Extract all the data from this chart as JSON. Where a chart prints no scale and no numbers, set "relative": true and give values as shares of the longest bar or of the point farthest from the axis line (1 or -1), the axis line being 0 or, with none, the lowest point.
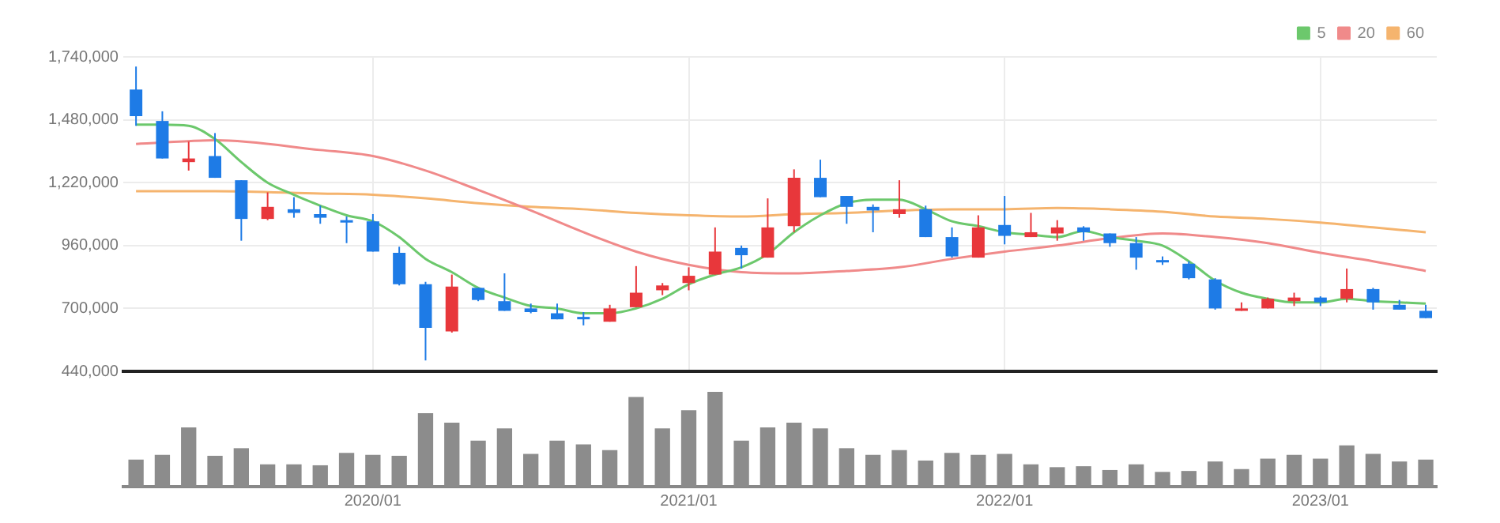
{
  "chart_data": [
    {
      "type": "candlestick",
      "x": [
        "2019-04",
        "2019-05",
        "2019-06",
        "2019-07",
        "2019-08",
        "2019-09",
        "2019-10",
        "2019-11",
        "2019-12",
        "2020-01",
        "2020-02",
        "2020-03",
        "2020-04",
        "2020-05",
        "2020-06",
        "2020-07",
        "2020-08",
        "2020-09",
        "2020-10",
        "2020-11",
        "2020-12",
        "2021-01",
        "2021-02",
        "2021-03",
        "2021-04",
        "2021-05",
        "2021-06",
        "2021-07",
        "2021-08",
        "2021-09",
        "2021-10",
        "2021-11",
        "2021-12",
        "2022-01",
        "2022-02",
        "2022-03",
        "2022-04",
        "2022-05",
        "2022-06",
        "2022-07",
        "2022-08",
        "2022-09",
        "2022-10",
        "2022-11",
        "2022-12",
        "2023-01",
        "2023-02",
        "2023-03",
        "2023-04",
        "2023-05"
      ],
      "ohlc": [
        [
          1605000,
          1700000,
          1455000,
          1495000
        ],
        [
          1475000,
          1515000,
          1320000,
          1320000
        ],
        [
          1305000,
          1390000,
          1270000,
          1320000
        ],
        [
          1330000,
          1425000,
          1240000,
          1240000
        ],
        [
          1230000,
          1230000,
          980000,
          1070000
        ],
        [
          1070000,
          1180000,
          1065000,
          1120000
        ],
        [
          1110000,
          1160000,
          1075000,
          1095000
        ],
        [
          1090000,
          1125000,
          1050000,
          1075000
        ],
        [
          1065000,
          1080000,
          970000,
          1055000
        ],
        [
          1060000,
          1090000,
          935000,
          935000
        ],
        [
          930000,
          955000,
          795000,
          800000
        ],
        [
          800000,
          810000,
          485000,
          620000
        ],
        [
          605000,
          840000,
          600000,
          790000
        ],
        [
          785000,
          785000,
          730000,
          735000
        ],
        [
          730000,
          845000,
          690000,
          690000
        ],
        [
          700000,
          720000,
          680000,
          685000
        ],
        [
          680000,
          720000,
          655000,
          655000
        ],
        [
          665000,
          685000,
          630000,
          655000
        ],
        [
          645000,
          715000,
          645000,
          700000
        ],
        [
          705000,
          875000,
          705000,
          765000
        ],
        [
          775000,
          805000,
          755000,
          795000
        ],
        [
          805000,
          870000,
          775000,
          835000
        ],
        [
          840000,
          1035000,
          840000,
          935000
        ],
        [
          950000,
          960000,
          865000,
          920000
        ],
        [
          910000,
          1155000,
          910000,
          1035000
        ],
        [
          1040000,
          1275000,
          1015000,
          1240000
        ],
        [
          1240000,
          1315000,
          1160000,
          1160000
        ],
        [
          1165000,
          1165000,
          1050000,
          1120000
        ],
        [
          1120000,
          1130000,
          1015000,
          1105000
        ],
        [
          1090000,
          1230000,
          1075000,
          1110000
        ],
        [
          1110000,
          1125000,
          995000,
          995000
        ],
        [
          995000,
          1035000,
          910000,
          915000
        ],
        [
          910000,
          1085000,
          910000,
          1035000
        ],
        [
          1045000,
          1165000,
          965000,
          1000000
        ],
        [
          995000,
          1095000,
          995000,
          1015000
        ],
        [
          1010000,
          1065000,
          980000,
          1035000
        ],
        [
          1035000,
          1040000,
          980000,
          1015000
        ],
        [
          1010000,
          1010000,
          955000,
          970000
        ],
        [
          970000,
          995000,
          860000,
          910000
        ],
        [
          900000,
          915000,
          880000,
          895000
        ],
        [
          885000,
          895000,
          820000,
          825000
        ],
        [
          820000,
          825000,
          695000,
          700000
        ],
        [
          690000,
          725000,
          690000,
          700000
        ],
        [
          700000,
          745000,
          700000,
          740000
        ],
        [
          730000,
          765000,
          710000,
          745000
        ],
        [
          745000,
          750000,
          710000,
          725000
        ],
        [
          740000,
          865000,
          725000,
          780000
        ],
        [
          780000,
          785000,
          695000,
          725000
        ],
        [
          715000,
          735000,
          695000,
          695000
        ],
        [
          690000,
          715000,
          660000,
          660000
        ]
      ],
      "colors": [
        "#1e7be6",
        "#1e7be6",
        "#e8373b",
        "#1e7be6",
        "#1e7be6",
        "#e8373b",
        "#1e7be6",
        "#1e7be6",
        "#1e7be6",
        "#1e7be6",
        "#1e7be6",
        "#1e7be6",
        "#e8373b",
        "#1e7be6",
        "#1e7be6",
        "#1e7be6",
        "#1e7be6",
        "#1e7be6",
        "#e8373b",
        "#e8373b",
        "#e8373b",
        "#e8373b",
        "#e8373b",
        "#1e7be6",
        "#e8373b",
        "#e8373b",
        "#1e7be6",
        "#1e7be6",
        "#1e7be6",
        "#e8373b",
        "#1e7be6",
        "#1e7be6",
        "#e8373b",
        "#1e7be6",
        "#e8373b",
        "#e8373b",
        "#1e7be6",
        "#1e7be6",
        "#1e7be6",
        "#1e7be6",
        "#1e7be6",
        "#1e7be6",
        "#e8373b",
        "#e8373b",
        "#e8373b",
        "#1e7be6",
        "#e8373b",
        "#1e7be6",
        "#1e7be6",
        "#1e7be6"
      ],
      "series": [
        {
          "type": "line",
          "name": "5",
          "color": "#6cc86c",
          "x": [
            "2019-04",
            "2019-05",
            "2019-06",
            "2019-07",
            "2019-08",
            "2019-09",
            "2019-10",
            "2019-11",
            "2019-12",
            "2020-01",
            "2020-02",
            "2020-03",
            "2020-04",
            "2020-05",
            "2020-06",
            "2020-07",
            "2020-08",
            "2020-09",
            "2020-10",
            "2020-11",
            "2020-12",
            "2021-01",
            "2021-02",
            "2021-03",
            "2021-04",
            "2021-05",
            "2021-06",
            "2021-07",
            "2021-08",
            "2021-09",
            "2021-10",
            "2021-11",
            "2021-12",
            "2022-01",
            "2022-02",
            "2022-03",
            "2022-04",
            "2022-05",
            "2022-06",
            "2022-07",
            "2022-08",
            "2022-09",
            "2022-10",
            "2022-11",
            "2022-12",
            "2023-01",
            "2023-02",
            "2023-03",
            "2023-04",
            "2023-05"
          ],
          "values": [
            1460000,
            1460000,
            1455000,
            1400000,
            1305000,
            1220000,
            1170000,
            1125000,
            1085000,
            1060000,
            995000,
            905000,
            850000,
            785000,
            745000,
            710000,
            700000,
            680000,
            680000,
            700000,
            740000,
            800000,
            840000,
            870000,
            925000,
            1015000,
            1085000,
            1135000,
            1150000,
            1150000,
            1110000,
            1060000,
            1040000,
            1015000,
            1005000,
            995000,
            1020000,
            995000,
            980000,
            960000,
            895000,
            815000,
            765000,
            740000,
            725000,
            725000,
            740000,
            730000,
            725000,
            720000
          ]
        },
        {
          "type": "line",
          "name": "20",
          "color": "#f08a8a",
          "x": [
            "2019-04",
            "2019-07",
            "2019-11",
            "2020-01",
            "2020-03",
            "2020-05",
            "2020-07",
            "2020-09",
            "2020-11",
            "2021-01",
            "2021-03",
            "2021-05",
            "2021-07",
            "2021-09",
            "2021-11",
            "2022-01",
            "2022-03",
            "2022-05",
            "2022-07",
            "2022-09",
            "2022-11",
            "2023-01",
            "2023-03",
            "2023-05"
          ],
          "values": [
            1380000,
            1395000,
            1355000,
            1330000,
            1270000,
            1190000,
            1105000,
            1015000,
            935000,
            880000,
            850000,
            845000,
            855000,
            870000,
            905000,
            935000,
            960000,
            990000,
            1010000,
            995000,
            970000,
            930000,
            895000,
            855000
          ]
        },
        {
          "type": "line",
          "name": "60",
          "color": "#f5b46e",
          "x": [
            "2019-04",
            "2019-07",
            "2019-11",
            "2020-01",
            "2020-03",
            "2020-05",
            "2020-07",
            "2020-09",
            "2020-11",
            "2021-01",
            "2021-03",
            "2021-05",
            "2021-07",
            "2021-09",
            "2021-11",
            "2022-01",
            "2022-03",
            "2022-05",
            "2022-07",
            "2022-09",
            "2022-11",
            "2023-01",
            "2023-03",
            "2023-05"
          ],
          "values": [
            1185000,
            1185000,
            1175000,
            1170000,
            1155000,
            1135000,
            1120000,
            1110000,
            1095000,
            1085000,
            1080000,
            1090000,
            1095000,
            1105000,
            1110000,
            1110000,
            1115000,
            1110000,
            1100000,
            1080000,
            1070000,
            1055000,
            1035000,
            1015000
          ]
        }
      ],
      "xlim": [
        "2019-03-17",
        "2023-05-14"
      ],
      "xticks": [
        {
          "value": "2020-01",
          "label": null
        },
        {
          "value": "2021-01",
          "label": null
        },
        {
          "value": "2022-01",
          "label": null
        },
        {
          "value": "2023-01",
          "label": null
        }
      ],
      "ylim": [
        440000,
        1740000
      ],
      "yticks": [
        {
          "value": 440000,
          "label": "440,000"
        },
        {
          "value": 700000,
          "label": "700,000"
        },
        {
          "value": 960000,
          "label": "960,000"
        },
        {
          "value": 1220000,
          "label": "1,220,000"
        },
        {
          "value": 1480000,
          "label": "1,480,000"
        },
        {
          "value": 1740000,
          "label": "1,740,000"
        }
      ],
      "grid": true,
      "legend": "top right",
      "tick_labels": "y"
    },
    {
      "type": "bar",
      "relative": true,
      "color": "#8c8c8c",
      "x": [
        "2019-04",
        "2019-05",
        "2019-06",
        "2019-07",
        "2019-08",
        "2019-09",
        "2019-10",
        "2019-11",
        "2019-12",
        "2020-01",
        "2020-02",
        "2020-03",
        "2020-04",
        "2020-05",
        "2020-06",
        "2020-07",
        "2020-08",
        "2020-09",
        "2020-10",
        "2020-11",
        "2020-12",
        "2021-01",
        "2021-02",
        "2021-03",
        "2021-04",
        "2021-05",
        "2021-06",
        "2021-07",
        "2021-08",
        "2021-09",
        "2021-10",
        "2021-11",
        "2021-12",
        "2022-01",
        "2022-02",
        "2022-03",
        "2022-04",
        "2022-05",
        "2022-06",
        "2022-07",
        "2022-08",
        "2022-09",
        "2022-10",
        "2022-11",
        "2022-12",
        "2023-01",
        "2023-02",
        "2023-03",
        "2023-04",
        "2023-05"
      ],
      "values": [
        0.28,
        0.33,
        0.62,
        0.32,
        0.4,
        0.23,
        0.23,
        0.22,
        0.35,
        0.33,
        0.32,
        0.77,
        0.67,
        0.48,
        0.61,
        0.34,
        0.48,
        0.44,
        0.38,
        0.94,
        0.61,
        0.8,
        1,
        0.48,
        0.62,
        0.67,
        0.61,
        0.4,
        0.33,
        0.38,
        0.27,
        0.35,
        0.33,
        0.34,
        0.23,
        0.2,
        0.21,
        0.17,
        0.23,
        0.15,
        0.16,
        0.26,
        0.18,
        0.29,
        0.33,
        0.29,
        0.43,
        0.34,
        0.26,
        0.28
      ],
      "xlim": [
        "2019-03-17",
        "2023-05-14"
      ],
      "xticks": [
        {
          "value": "2020-01",
          "label": "2020/01"
        },
        {
          "value": "2021-01",
          "label": "2021/01"
        },
        {
          "value": "2022-01",
          "label": "2022/01"
        },
        {
          "value": "2023-01",
          "label": "2023/01"
        }
      ],
      "tick_labels": "x"
    }
  ]
}
